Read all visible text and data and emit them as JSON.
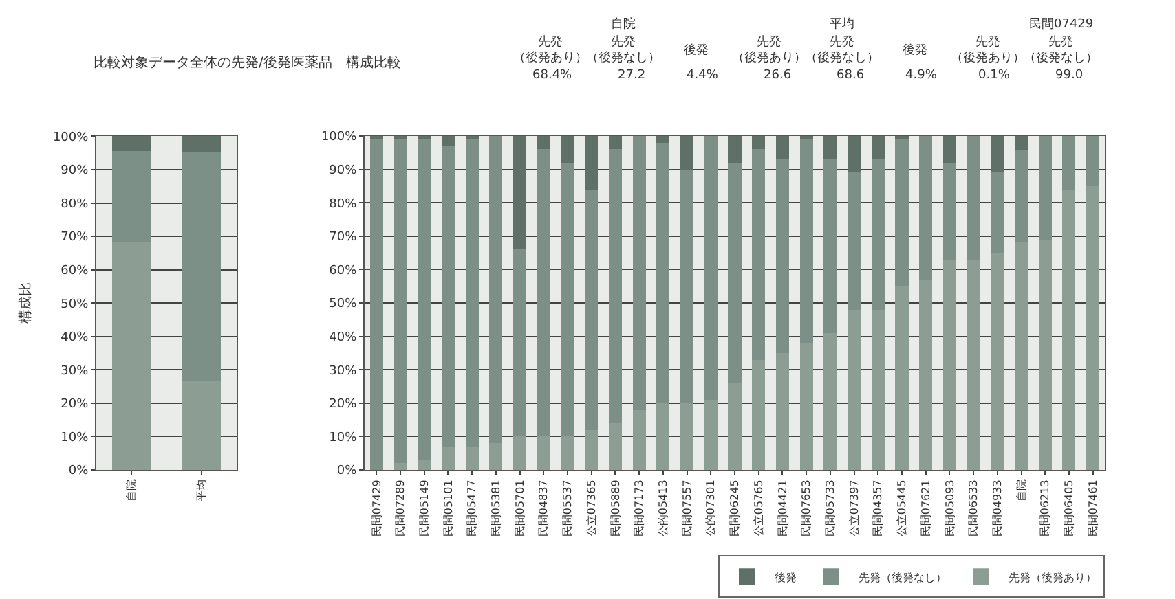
{
  "chart_data": [
    {
      "type": "bar",
      "title": "比較対象データ全体の先発/後発医薬品　構成比較",
      "ylabel": "構成比",
      "categories": [
        "自院",
        "平均"
      ],
      "stacked": true,
      "series": [
        {
          "color": "#8c9e94",
          "values": [
            68.4,
            26.6
          ]
        },
        {
          "color": "#7d9088",
          "values": [
            27.2,
            68.6
          ]
        },
        {
          "color": "#5f7068",
          "values": [
            4.4,
            4.9
          ]
        }
      ],
      "ylim": [
        0,
        100.1
      ],
      "yticks": [
        {
          "value": 0,
          "label": "0%"
        },
        {
          "value": 10,
          "label": "10%"
        },
        {
          "value": 20,
          "label": "20%"
        },
        {
          "value": 30,
          "label": "30%"
        },
        {
          "value": 40,
          "label": "40%"
        },
        {
          "value": 50,
          "label": "50%"
        },
        {
          "value": 60,
          "label": "60%"
        },
        {
          "value": 70,
          "label": "70%"
        },
        {
          "value": 80,
          "label": "80%"
        },
        {
          "value": 90,
          "label": "90%"
        },
        {
          "value": 100,
          "label": "100%"
        }
      ],
      "grid": "y",
      "legend": false
    },
    {
      "type": "bar",
      "categories": [
        "民間07429",
        "民間07289",
        "民間05149",
        "民間05101",
        "民間05477",
        "民間05381",
        "民間05701",
        "民間04837",
        "民間05537",
        "公立07365",
        "民間05889",
        "民間07173",
        "公的05413",
        "民間07557",
        "公的07301",
        "民間06245",
        "公立05765",
        "民間04421",
        "民間07653",
        "民間05733",
        "公立07397",
        "民間04357",
        "公立05445",
        "民間07621",
        "民間05093",
        "民間06533",
        "民間04933",
        "自院",
        "民間06213",
        "民間06405",
        "民間07461"
      ],
      "stacked": true,
      "series": [
        {
          "name": "先発（後発あり）",
          "color": "#8c9e94",
          "values": [
            0.1,
            2,
            3,
            7,
            7,
            8,
            10,
            10,
            10,
            12,
            14,
            18,
            20,
            20,
            21,
            26,
            33,
            35,
            38,
            41,
            48,
            48,
            55,
            57,
            63,
            63,
            65,
            68.4,
            69,
            84,
            85
          ]
        },
        {
          "name": "先発（後発なし）",
          "color": "#7d9088",
          "values": [
            99.0,
            97,
            96,
            90,
            92,
            92,
            56,
            86,
            82,
            72,
            82,
            82,
            78,
            70,
            79,
            66,
            63,
            58,
            61,
            52,
            41,
            45,
            44,
            43,
            29,
            37,
            24,
            27.2,
            31,
            16,
            15
          ]
        },
        {
          "name": "後発",
          "color": "#5f7068",
          "values": [
            0.9,
            1,
            1,
            3,
            1,
            0,
            34,
            4,
            8,
            16,
            4,
            0,
            2,
            10,
            0,
            8,
            4,
            7,
            1,
            7,
            11,
            7,
            1,
            0,
            8,
            0,
            11,
            4.4,
            0,
            0,
            0
          ]
        }
      ],
      "ylim": [
        0,
        100
      ],
      "yticks": [
        {
          "value": 0,
          "label": "0%"
        },
        {
          "value": 10,
          "label": "10%"
        },
        {
          "value": 20,
          "label": "20%"
        },
        {
          "value": 30,
          "label": "30%"
        },
        {
          "value": 40,
          "label": "40%"
        },
        {
          "value": 50,
          "label": "50%"
        },
        {
          "value": 60,
          "label": "60%"
        },
        {
          "value": 70,
          "label": "70%"
        },
        {
          "value": 80,
          "label": "80%"
        },
        {
          "value": 90,
          "label": "90%"
        },
        {
          "value": 100,
          "label": "100%"
        }
      ],
      "grid": "y",
      "legend": "bottom right",
      "annotations": [
        "自院",
        "平均",
        "民間07429",
        "先発（後発あり）",
        "先発（後発なし）",
        "後発",
        "先発（後発あり）",
        "先発（後発なし）",
        "後発",
        "先発（後発あり）",
        "先発（後発なし）",
        "68.4%",
        "27.2",
        "4.4%",
        "26.6",
        "68.6",
        "4.9%",
        "0.1%",
        "99.0"
      ]
    }
  ]
}
